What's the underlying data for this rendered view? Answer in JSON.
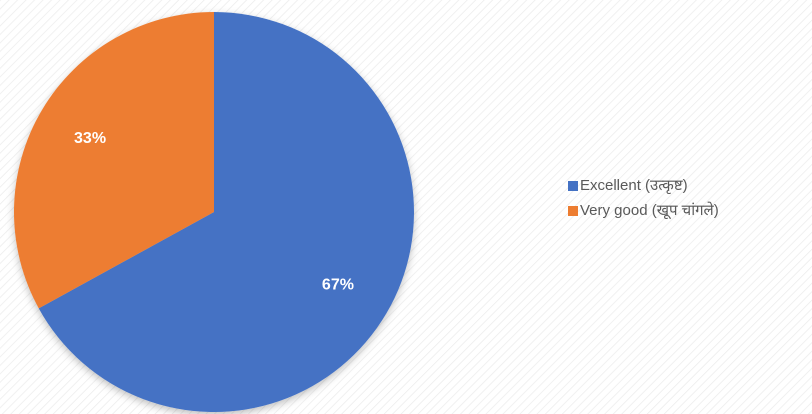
{
  "chart_data": {
    "type": "pie",
    "categories": [
      "Excellent (उत्कृष्ट)",
      "Very good (खूप  चांगले)"
    ],
    "values": [
      67,
      33
    ],
    "value_labels": [
      "67%",
      "33%"
    ],
    "colors": [
      "#4472c4",
      "#ed7d31"
    ],
    "legend": "right"
  }
}
